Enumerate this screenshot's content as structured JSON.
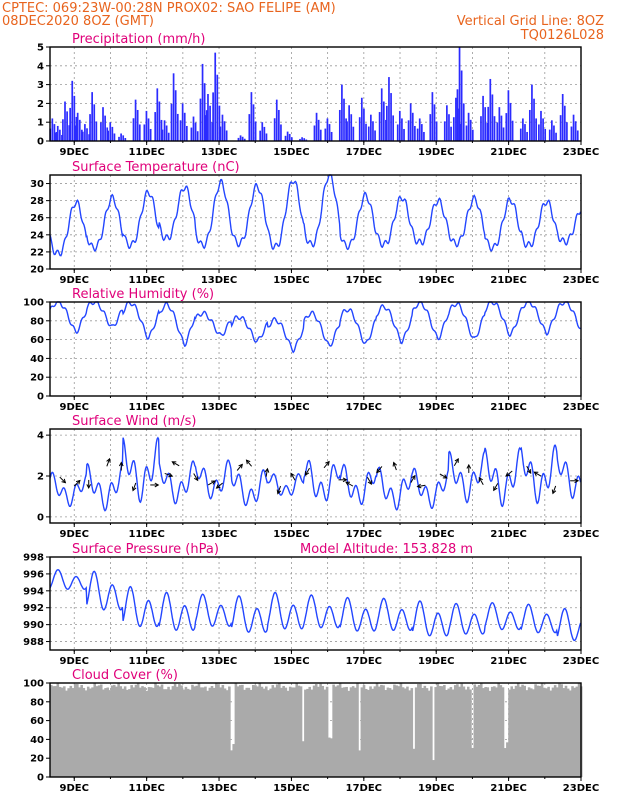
{
  "header": {
    "line1_left": "CPTEC:   069:23W-00:28N   PROX02: SAO FELIPE (AM)",
    "line2_left": "08DEC2020 8OZ (GMT)",
    "line2_right": "Vertical Grid Line: 8OZ",
    "line3_right": "TQ0126L028"
  },
  "x_ticks": [
    "9DEC",
    "11DEC",
    "13DEC",
    "15DEC",
    "17DEC",
    "19DEC",
    "21DEC",
    "23DEC"
  ],
  "colors": {
    "series": "#2346ff",
    "bars": "#2b2bff",
    "cloud": "#aaaaaa",
    "header": "#e8641e",
    "title": "#e0007a",
    "arrow": "#000000"
  },
  "chart_data": [
    {
      "id": "precip",
      "type": "bar",
      "title": "Precipitation (mm/h)",
      "ylim": [
        0,
        5
      ],
      "yticks": [
        0,
        1,
        2,
        3,
        4,
        5
      ],
      "x_range_days": [
        8.33,
        23.0
      ],
      "events": [
        {
          "t": 8.4,
          "v": 1.2
        },
        {
          "t": 8.55,
          "v": 0.8
        },
        {
          "t": 8.75,
          "v": 2.1
        },
        {
          "t": 8.95,
          "v": 3.2
        },
        {
          "t": 9.1,
          "v": 1.5
        },
        {
          "t": 9.3,
          "v": 0.9
        },
        {
          "t": 9.5,
          "v": 2.6
        },
        {
          "t": 9.8,
          "v": 1.8
        },
        {
          "t": 10.0,
          "v": 1.0
        },
        {
          "t": 10.3,
          "v": 0.4
        },
        {
          "t": 10.7,
          "v": 2.2
        },
        {
          "t": 11.0,
          "v": 1.6
        },
        {
          "t": 11.3,
          "v": 2.8
        },
        {
          "t": 11.5,
          "v": 1.1
        },
        {
          "t": 11.75,
          "v": 3.6
        },
        {
          "t": 12.0,
          "v": 2.0
        },
        {
          "t": 12.3,
          "v": 1.3
        },
        {
          "t": 12.55,
          "v": 4.1
        },
        {
          "t": 12.7,
          "v": 2.5
        },
        {
          "t": 12.9,
          "v": 4.7
        },
        {
          "t": 13.1,
          "v": 1.4
        },
        {
          "t": 13.6,
          "v": 0.3
        },
        {
          "t": 13.9,
          "v": 2.6
        },
        {
          "t": 14.2,
          "v": 1.0
        },
        {
          "t": 14.6,
          "v": 2.2
        },
        {
          "t": 14.9,
          "v": 0.5
        },
        {
          "t": 15.3,
          "v": 0.2
        },
        {
          "t": 15.7,
          "v": 1.5
        },
        {
          "t": 16.0,
          "v": 1.2
        },
        {
          "t": 16.4,
          "v": 3.0
        },
        {
          "t": 16.6,
          "v": 1.9
        },
        {
          "t": 16.95,
          "v": 2.3
        },
        {
          "t": 17.2,
          "v": 1.4
        },
        {
          "t": 17.5,
          "v": 2.8
        },
        {
          "t": 17.7,
          "v": 3.4
        },
        {
          "t": 18.0,
          "v": 1.6
        },
        {
          "t": 18.3,
          "v": 2.0
        },
        {
          "t": 18.55,
          "v": 1.2
        },
        {
          "t": 18.9,
          "v": 2.6
        },
        {
          "t": 19.3,
          "v": 1.9
        },
        {
          "t": 19.55,
          "v": 2.3
        },
        {
          "t": 19.65,
          "v": 5.0
        },
        {
          "t": 19.9,
          "v": 1.5
        },
        {
          "t": 20.3,
          "v": 2.4
        },
        {
          "t": 20.5,
          "v": 3.3
        },
        {
          "t": 20.75,
          "v": 1.8
        },
        {
          "t": 21.0,
          "v": 2.7
        },
        {
          "t": 21.4,
          "v": 1.2
        },
        {
          "t": 21.65,
          "v": 3.0
        },
        {
          "t": 21.9,
          "v": 1.6
        },
        {
          "t": 22.2,
          "v": 1.1
        },
        {
          "t": 22.5,
          "v": 2.5
        },
        {
          "t": 22.8,
          "v": 1.4
        }
      ]
    },
    {
      "id": "temp",
      "type": "line",
      "title": "Surface Temperature (nC)",
      "ylim": [
        20,
        31
      ],
      "yticks": [
        20,
        22,
        24,
        26,
        28,
        30
      ],
      "min_values": [
        21.8,
        22.5,
        22.8,
        23.6,
        22.8,
        23.0,
        22.6,
        22.9,
        22.7,
        22.9,
        23.1,
        23.0,
        22.5,
        22.8,
        23.2
      ],
      "max_values": [
        27.8,
        28.3,
        29.0,
        29.6,
        30.1,
        29.7,
        30.4,
        31.0,
        28.6,
        28.4,
        28.0,
        28.2,
        28.1,
        27.9,
        27.2
      ]
    },
    {
      "id": "rh",
      "type": "line",
      "title": "Relative Humidity (%)",
      "ylim": [
        0,
        100
      ],
      "yticks": [
        0,
        20,
        40,
        60,
        80,
        100
      ],
      "min_values": [
        68,
        73,
        62,
        55,
        64,
        58,
        49,
        53,
        55,
        58,
        61,
        60,
        65,
        67,
        68
      ],
      "max_values": [
        100,
        100,
        99,
        97,
        88,
        84,
        81,
        88,
        92,
        95,
        99,
        98,
        100,
        100,
        100
      ]
    },
    {
      "id": "wind",
      "type": "line",
      "title": "Surface Wind (m/s)",
      "ylim": [
        -0.3,
        4.3
      ],
      "yticks": [
        0,
        2,
        4
      ],
      "min_values": [
        0.5,
        0.3,
        0.7,
        0.6,
        0.8,
        0.4,
        0.9,
        0.6,
        0.5,
        0.3,
        0.4,
        0.7,
        0.5,
        0.6,
        0.8
      ],
      "max_values": [
        2.2,
        2.6,
        3.9,
        2.8,
        2.9,
        2.5,
        2.3,
        3.0,
        2.7,
        2.5,
        2.4,
        3.2,
        3.4,
        3.6,
        3.3
      ],
      "arrow_days": [
        8.6,
        9.0,
        9.4,
        9.9,
        10.3,
        10.7,
        11.1,
        11.5,
        11.9,
        12.3,
        12.7,
        13.1,
        13.5,
        13.9,
        14.3,
        14.7,
        15.1,
        15.5,
        15.9,
        16.3,
        16.7,
        17.1,
        17.5,
        17.9,
        18.3,
        18.7,
        19.1,
        19.5,
        19.9,
        20.3,
        20.7,
        21.1,
        21.5,
        21.9,
        22.3,
        22.7
      ],
      "arrow_dirs_deg": [
        135,
        45,
        180,
        20,
        0,
        200,
        90,
        110,
        300,
        150,
        60,
        230,
        40,
        320,
        10,
        200,
        330,
        210,
        40,
        90,
        300,
        150,
        220,
        340,
        30,
        260,
        120,
        30,
        0,
        330,
        210,
        230,
        150,
        300,
        200,
        90
      ]
    },
    {
      "id": "press",
      "type": "line",
      "title": "Surface Pressure (hPa)",
      "annotation": "Model Altitude: 153.828 m",
      "ylim": [
        987,
        998
      ],
      "yticks": [
        988,
        990,
        992,
        994,
        996,
        998
      ],
      "min_values": [
        993.8,
        991.0,
        989.0,
        988.6,
        989.2,
        988.4,
        988.8,
        989.0,
        988.6,
        988.7,
        988.0,
        988.3,
        988.9,
        988.5,
        987.5
      ],
      "max_values": [
        996.5,
        996.3,
        994.5,
        993.8,
        993.6,
        993.4,
        993.8,
        993.5,
        993.2,
        993.1,
        992.8,
        992.5,
        992.6,
        992.4,
        991.9
      ]
    },
    {
      "id": "cloud",
      "type": "area",
      "title": "Cloud Cover (%)",
      "ylim": [
        0,
        100
      ],
      "yticks": [
        0,
        20,
        40,
        60,
        80,
        100
      ],
      "baseline": 96,
      "gaps_days": [
        13.35,
        15.3,
        16.05,
        16.85,
        18.35,
        18.9,
        19.95,
        20.9
      ]
    }
  ]
}
